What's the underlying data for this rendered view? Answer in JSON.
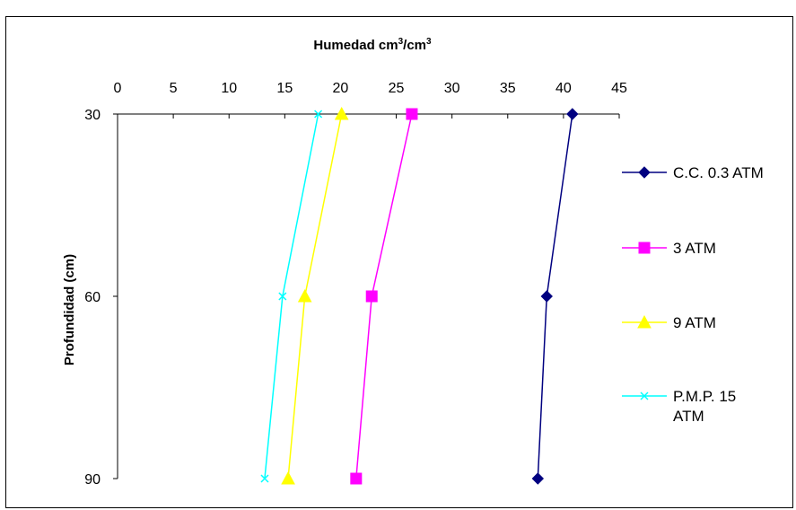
{
  "chart_data": {
    "type": "line",
    "title_main": "Humedad cm",
    "title_sup1": "3",
    "title_mid": "/cm",
    "title_sup2": "3",
    "xlabel": "Humedad cm3/cm3",
    "ylabel": "Profundidad (cm)",
    "x_axis_position": "top",
    "xlim": [
      0,
      45
    ],
    "x_ticks": [
      "0",
      "5",
      "10",
      "15",
      "20",
      "25",
      "30",
      "35",
      "40",
      "45"
    ],
    "y_ticks": [
      "30",
      "60",
      "90"
    ],
    "y_values": [
      30,
      60,
      90
    ],
    "ylim": [
      30,
      90
    ],
    "y_inverted": true,
    "grid": false,
    "legend_position": "right",
    "series": [
      {
        "name": "C.C. 0.3 ATM",
        "color": "#000080",
        "marker": "diamond",
        "points": [
          [
            40.8,
            30
          ],
          [
            38.5,
            60
          ],
          [
            37.7,
            90
          ]
        ]
      },
      {
        "name": "3 ATM",
        "color": "#FF00FF",
        "marker": "square",
        "points": [
          [
            26.4,
            30
          ],
          [
            22.8,
            60
          ],
          [
            21.4,
            90
          ]
        ]
      },
      {
        "name": "9 ATM",
        "color": "#FFFF00",
        "marker": "triangle",
        "points": [
          [
            20.1,
            30
          ],
          [
            16.8,
            60
          ],
          [
            15.3,
            90
          ]
        ]
      },
      {
        "name": "P.M.P. 15 ATM",
        "name_line1": "P.M.P. 15",
        "name_line2": "ATM",
        "color": "#00FFFF",
        "marker": "x",
        "points": [
          [
            18.0,
            30
          ],
          [
            14.8,
            60
          ],
          [
            13.2,
            90
          ]
        ]
      }
    ]
  }
}
